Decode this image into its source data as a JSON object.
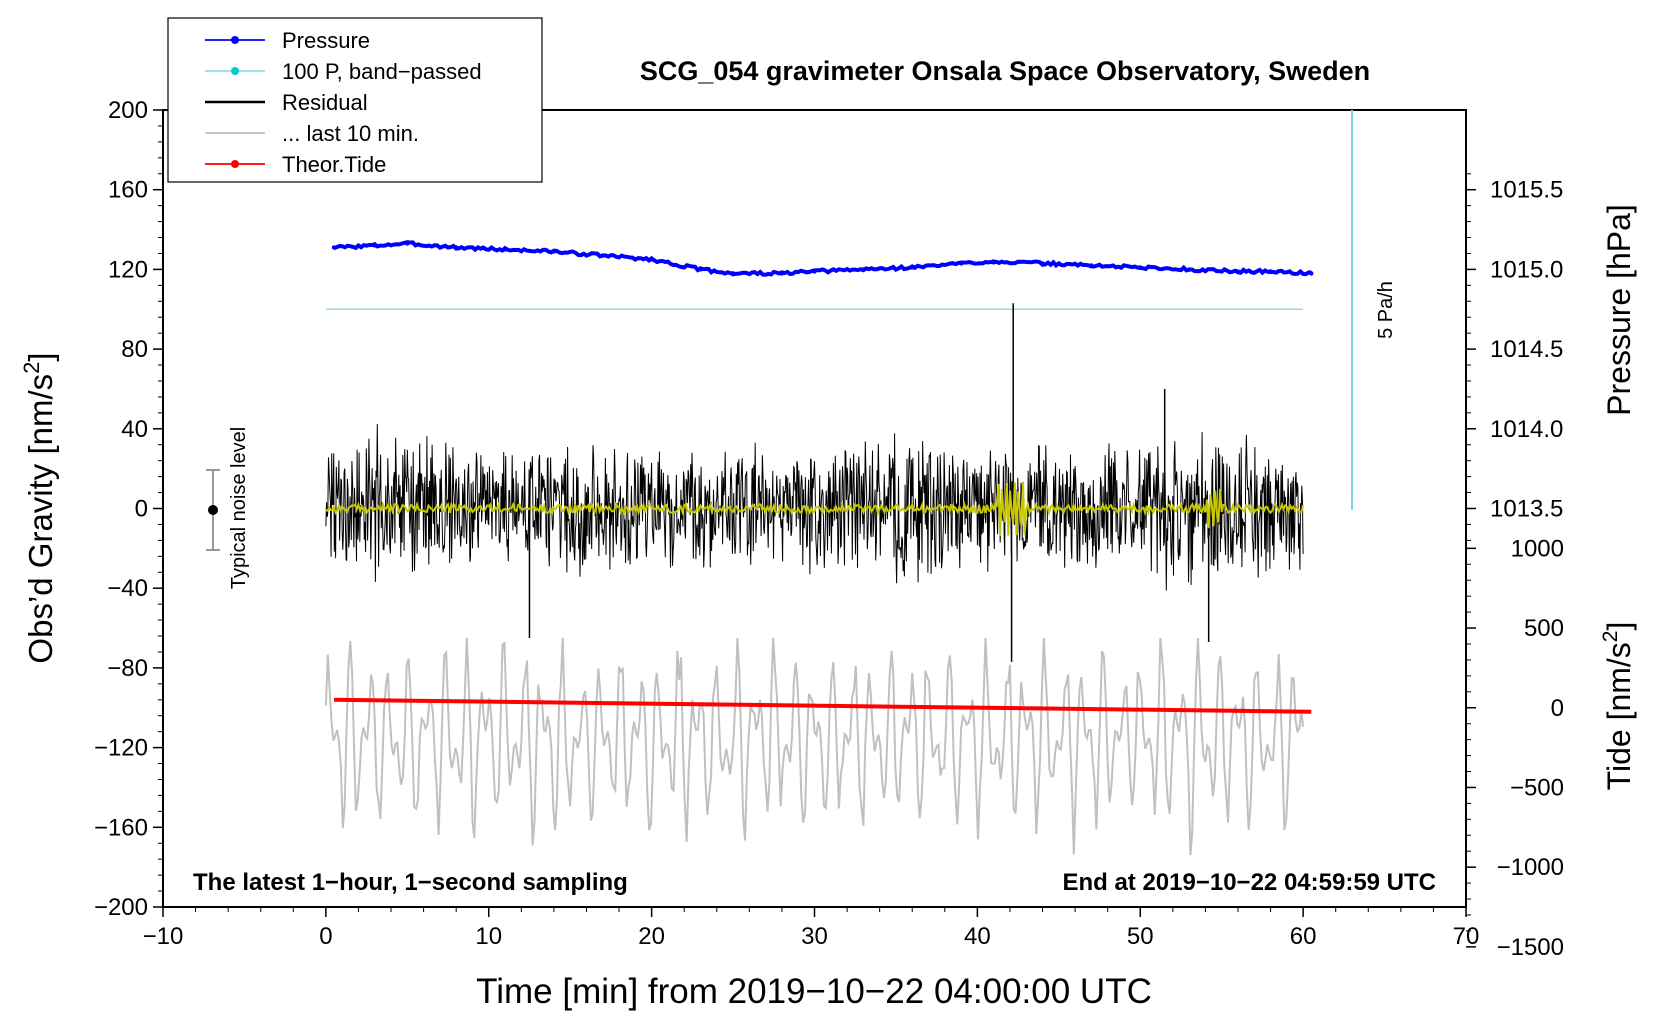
{
  "chart_data": {
    "type": "line",
    "title": "SCG_054 gravimeter Onsala Space Observatory, Sweden",
    "xlabel": "Time [min] from 2019−10−22 04:00:00 UTC",
    "ylabel": "Obs’d Gravity [nm/s²]",
    "ylabel_parts": {
      "main": "Obs’d Gravity [nm/s",
      "sup": "2",
      "end": "]"
    },
    "xlim": [
      -10,
      70
    ],
    "ylim": [
      -200,
      200
    ],
    "x_ticks": [
      -10,
      0,
      10,
      20,
      30,
      40,
      50,
      60,
      70
    ],
    "x_tick_labels": [
      "−10",
      "0",
      "10",
      "20",
      "30",
      "40",
      "50",
      "60",
      "70"
    ],
    "y_ticks": [
      200,
      160,
      120,
      80,
      40,
      0,
      -40,
      -80,
      -120,
      -160,
      -200
    ],
    "y_tick_labels": [
      "200",
      "160",
      "120",
      "80",
      "40",
      "0",
      "−40",
      "−80",
      "−120",
      "−160",
      "−200"
    ],
    "pressure_axis": {
      "label": "Pressure [hPa]",
      "ticks": [
        1015.5,
        1015.0,
        1014.5,
        1014.0,
        1013.5
      ],
      "tick_labels": [
        "1015.5",
        "1015.0",
        "1014.5",
        "1014.0",
        "1013.5"
      ],
      "gravity_equivalent_of_1015": 120,
      "nm_per_hpa": 80
    },
    "tide_axis": {
      "label_parts": {
        "main": "Tide [nm/s",
        "sup": "2",
        "end": "]"
      },
      "ticks": [
        1000,
        500,
        0,
        -500,
        -1000,
        -1500
      ],
      "tick_labels": [
        "1000",
        "500",
        "0",
        "−500",
        "−1000",
        "−1500"
      ],
      "gravity_at_zero": -100,
      "nm_per_unit": 0.08
    },
    "legend": [
      {
        "label": "Pressure",
        "color": "#0000ff",
        "marker": true
      },
      {
        "label": "100 P, band−passed",
        "color": "#00cccc",
        "marker": true
      },
      {
        "label": "Residual",
        "color": "#000000",
        "marker": false
      },
      {
        "label": "... last 10 min.",
        "color": "#c0c0c0",
        "marker": false
      },
      {
        "label": "Theor.Tide",
        "color": "#ff0000",
        "marker": true
      }
    ],
    "series": [
      {
        "name": "Pressure",
        "color": "#0000ff",
        "x": [
          0.5,
          3,
          5,
          8,
          11,
          14,
          17,
          20,
          23,
          25,
          28,
          30,
          33,
          36,
          39,
          41,
          44,
          47,
          50,
          53,
          56,
          58,
          60.5
        ],
        "y": [
          131,
          132,
          133,
          131,
          130,
          129,
          127,
          125,
          120,
          118,
          118,
          119,
          120,
          121,
          123,
          124,
          123,
          122,
          121,
          120,
          119,
          119,
          118
        ]
      },
      {
        "name": "100 P, band-passed",
        "color": "#00cccc",
        "x": [
          0,
          60
        ],
        "y": [
          100,
          100
        ]
      },
      {
        "name": "Residual",
        "color": "#000000",
        "x_range": [
          0,
          60
        ],
        "amplitude": 30,
        "spikes": [
          {
            "x": 12.5,
            "y": -65
          },
          {
            "x": 42.2,
            "y": 103
          },
          {
            "x": 42.1,
            "y": -77
          },
          {
            "x": 54.2,
            "y": -67
          },
          {
            "x": 51.5,
            "y": 60
          }
        ]
      },
      {
        "name": "Residual smoothed",
        "color": "#c8c800",
        "x_range": [
          0,
          60
        ]
      },
      {
        "name": "... last 10 min.",
        "color": "#c0c0c0",
        "x_range": [
          0,
          60
        ],
        "center": -115,
        "amplitude": 45
      },
      {
        "name": "Theor.Tide",
        "color": "#ff0000",
        "x": [
          0.5,
          60.5
        ],
        "y": [
          -96,
          -102
        ]
      }
    ],
    "noise_bar": {
      "label": "Typical noise level",
      "x": -7,
      "y_center": 0,
      "y_low": -20,
      "y_high": 20
    },
    "pressure_rate_bar": {
      "label": "5 Pa/h",
      "x": 63,
      "y_low": 0,
      "y_high": 200
    },
    "annotations": {
      "bottom_left": "The latest 1−hour, 1−second sampling",
      "bottom_right": "End at 2019−10−22 04:59:59 UTC"
    }
  }
}
